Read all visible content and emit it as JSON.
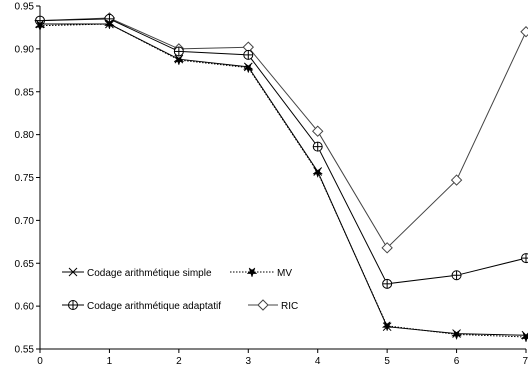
{
  "chart_data": {
    "type": "line",
    "title": "",
    "xlabel": "",
    "ylabel": "",
    "x": [
      0,
      1,
      2,
      3,
      4,
      5,
      6,
      7
    ],
    "xlim": [
      0,
      7
    ],
    "ylim": [
      0.55,
      0.95
    ],
    "x_ticks": [
      "0",
      "1",
      "2",
      "3",
      "4",
      "5",
      "6",
      "7"
    ],
    "y_ticks": [
      "0.55",
      "0.60",
      "0.65",
      "0.70",
      "0.75",
      "0.80",
      "0.85",
      "0.90",
      "0.95"
    ],
    "grid": false,
    "legend_position": "bottom-left",
    "series": [
      {
        "name": "Codage arithmétique simple",
        "marker": "x",
        "line_style": "solid",
        "color": "#000000",
        "values": [
          0.929,
          0.929,
          0.888,
          0.879,
          0.757,
          0.576,
          0.568,
          0.566
        ]
      },
      {
        "name": "MV",
        "marker": "filled-star",
        "line_style": "dotted",
        "color": "#000000",
        "values": [
          0.927,
          0.929,
          0.887,
          0.878,
          0.756,
          0.577,
          0.567,
          0.564
        ]
      },
      {
        "name": "Codage arithmétique adaptatif",
        "marker": "circle-plus",
        "line_style": "solid",
        "color": "#000000",
        "values": [
          0.933,
          0.935,
          0.897,
          0.893,
          0.786,
          0.626,
          0.636,
          0.656
        ]
      },
      {
        "name": "RIC",
        "marker": "diamond",
        "line_style": "solid",
        "color": "#444444",
        "values": [
          0.933,
          0.936,
          0.9,
          0.902,
          0.804,
          0.668,
          0.747,
          0.92
        ]
      }
    ]
  }
}
